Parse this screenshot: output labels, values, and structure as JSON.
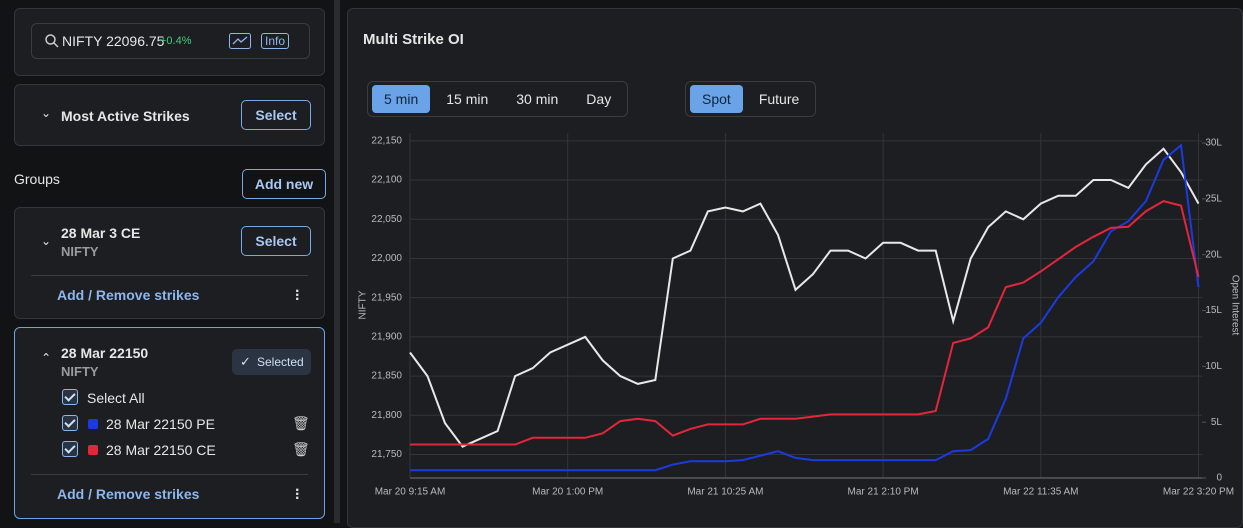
{
  "sidebar": {
    "search": "NIFTY 22096.75",
    "change": "+0.4%",
    "info": "Info",
    "most_active": {
      "title": "Most Active Strikes",
      "button": "Select"
    },
    "groups_label": "Groups",
    "add_new": "Add new",
    "groups": [
      {
        "title": "28 Mar 3 CE",
        "subtitle": "NIFTY",
        "button": "Select",
        "link": "Add / Remove strikes"
      },
      {
        "title": "28 Mar 22150",
        "subtitle": "NIFTY",
        "status": "Selected",
        "select_all": "Select All",
        "strikes": [
          {
            "label": "28 Mar 22150 PE",
            "color": "#1b3be0"
          },
          {
            "label": "28 Mar 22150 CE",
            "color": "#e3263b"
          }
        ],
        "link": "Add / Remove strikes"
      }
    ]
  },
  "tabs": {
    "intervals": [
      "5 min",
      "15 min",
      "30 min",
      "Day"
    ],
    "active_interval": 0,
    "modes": [
      "Spot",
      "Future"
    ],
    "active_mode": 0
  },
  "chart_data": {
    "type": "line",
    "title": "Multi Strike OI",
    "y_label": "NIFTY",
    "y2_label": "Open Interest",
    "grid": true,
    "x": [
      0,
      5,
      10,
      15,
      20,
      25,
      30,
      35,
      40,
      45,
      50,
      55,
      60,
      65,
      70,
      75,
      80,
      85,
      90,
      95,
      100,
      105,
      110,
      115,
      120,
      125,
      130,
      135,
      140,
      145,
      150,
      155,
      160,
      165,
      170,
      175,
      180,
      185,
      190,
      195,
      200,
      205,
      210,
      215,
      220,
      225
    ],
    "xlim": [
      0,
      226
    ],
    "xticks": [
      {
        "value": 0,
        "label": "Mar 20 9:15 AM"
      },
      {
        "value": 45,
        "label": "Mar 20 1:00 PM"
      },
      {
        "value": 90,
        "label": "Mar 21 10:25 AM"
      },
      {
        "value": 135,
        "label": "Mar 21 2:10 PM"
      },
      {
        "value": 180,
        "label": "Mar 22 11:35 AM"
      },
      {
        "value": 225,
        "label": "Mar 22 3:20 PM"
      }
    ],
    "ylim": [
      21720,
      22160
    ],
    "yticks": [
      {
        "value": 21750,
        "label": "21,750"
      },
      {
        "value": 21800,
        "label": "21,800"
      },
      {
        "value": 21850,
        "label": "21,850"
      },
      {
        "value": 21900,
        "label": "21,900"
      },
      {
        "value": 21950,
        "label": "21,950"
      },
      {
        "value": 22000,
        "label": "22,000"
      },
      {
        "value": 22050,
        "label": "22,050"
      },
      {
        "value": 22100,
        "label": "22,100"
      },
      {
        "value": 22150,
        "label": "22,150"
      }
    ],
    "y2lim": [
      0,
      30.9
    ],
    "y2ticks": [
      0,
      {
        "value": 5,
        "label": "5L"
      },
      {
        "value": 10,
        "label": "10L"
      },
      {
        "value": 15,
        "label": "15L"
      },
      {
        "value": 20,
        "label": "20L"
      },
      {
        "value": 25,
        "label": "25L"
      },
      {
        "value": 30,
        "label": "30L"
      }
    ],
    "series": [
      {
        "color": "#e8e8e8",
        "axis": "y",
        "values": [
          21880,
          21850,
          21790,
          21760,
          21770,
          21780,
          21850,
          21860,
          21880,
          21890,
          21900,
          21870,
          21850,
          21840,
          21845,
          22000,
          22010,
          22060,
          22065,
          22060,
          22070,
          22030,
          21960,
          21980,
          22010,
          22010,
          22000,
          22020,
          22020,
          22010,
          22010,
          21920,
          22000,
          22040,
          22060,
          22050,
          22070,
          22080,
          22080,
          22100,
          22100,
          22090,
          22120,
          22140,
          22110,
          22070
        ]
      },
      {
        "color": "#1b3be0",
        "axis": "y2",
        "values": [
          0.7,
          0.7,
          0.7,
          0.7,
          0.7,
          0.7,
          0.7,
          0.7,
          0.7,
          0.7,
          0.7,
          0.7,
          0.7,
          0.7,
          0.7,
          1.2,
          1.5,
          1.5,
          1.5,
          1.6,
          2.0,
          2.4,
          1.8,
          1.6,
          1.6,
          1.6,
          1.6,
          1.6,
          1.6,
          1.6,
          1.6,
          2.4,
          2.5,
          3.5,
          7.1,
          12.5,
          13.9,
          16.2,
          18,
          19.4,
          22.1,
          23,
          24.8,
          28.5,
          29.8,
          17.1
        ]
      },
      {
        "color": "#e3263b",
        "axis": "y2",
        "values": [
          3.0,
          3.0,
          3.0,
          3.0,
          3.0,
          3.0,
          3.0,
          3.6,
          3.6,
          3.6,
          3.6,
          4.0,
          5.1,
          5.3,
          5.1,
          3.8,
          4.4,
          4.8,
          4.8,
          4.8,
          5.3,
          5.3,
          5.3,
          5.5,
          5.7,
          5.7,
          5.7,
          5.7,
          5.7,
          5.7,
          6.0,
          12.1,
          12.5,
          13.5,
          17.1,
          17.5,
          18.5,
          19.6,
          20.7,
          21.6,
          22.4,
          22.5,
          23.9,
          24.8,
          24.4,
          18
        ]
      }
    ]
  }
}
